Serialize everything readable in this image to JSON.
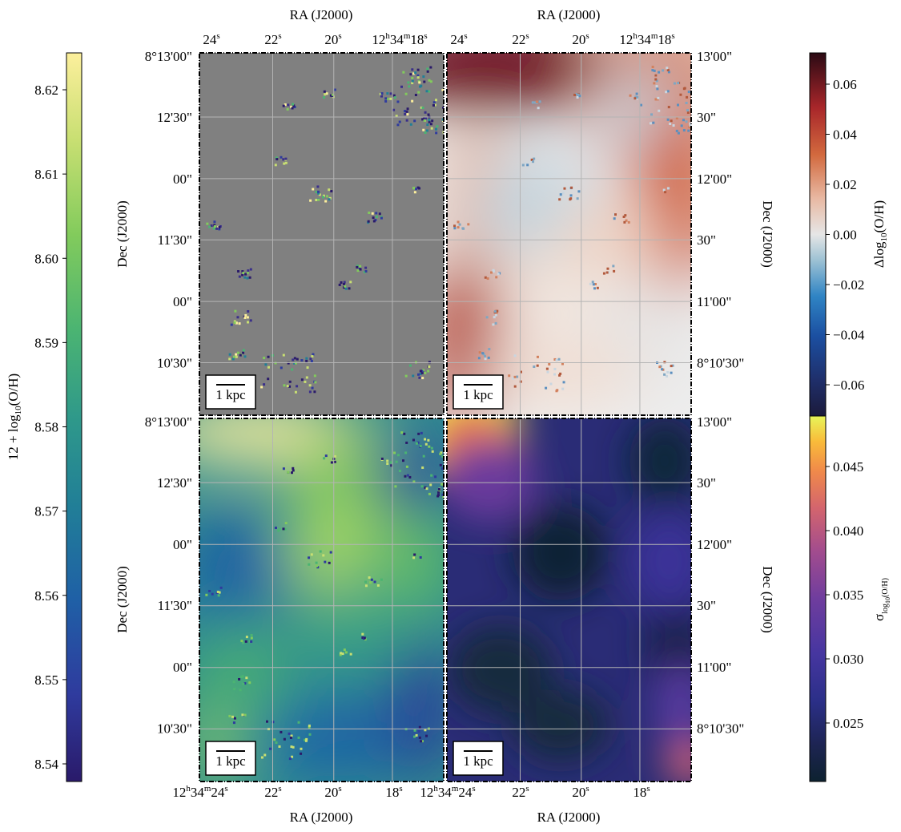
{
  "colors": {
    "gray_panel": "#808080",
    "grid": "#b4b4b4",
    "frame": "#000000"
  },
  "text": {
    "ra_label": "RA (J2000)",
    "dec_label": "Dec (J2000)",
    "scalebar": "1 kpc",
    "ra_top_ticks": [
      "24",
      "22",
      "20",
      "12",
      "18"
    ],
    "ra_bottom_ticks_left": [
      "12",
      "22",
      "20",
      "18"
    ],
    "ra_bottom_ticks_right": [
      "12",
      "22",
      "20",
      "18"
    ],
    "dec_left_ticks": [
      "8°13'00\"",
      "12'30\"",
      "00\"",
      "11'30\"",
      "00\"",
      "10'30\""
    ],
    "dec_right_ticks": [
      "13'00\"",
      "30\"",
      "12'00\"",
      "30\"",
      "11'00\"",
      "8°10'30\""
    ]
  },
  "chart_data": [
    {
      "type": "heatmap",
      "panel": "top-left",
      "description_colormap": "12 + log10(O/H)",
      "xlabel": "RA (J2000)",
      "ylabel": "Dec (J2000)",
      "background": "masked (gray)",
      "grid": true
    },
    {
      "type": "heatmap",
      "panel": "top-right",
      "xlabel": "RA (J2000)",
      "ylabel": "Dec (J2000)",
      "colorbar": {
        "label": "Δlog10(O/H)",
        "ticks": [
          "0.06",
          "0.04",
          "0.02",
          "0.00",
          "−0.02",
          "−0.04",
          "−0.06"
        ],
        "range": [
          -0.073,
          0.073
        ],
        "stops": [
          "#1b1a3b",
          "#1b4fa1",
          "#2f84c4",
          "#9ec2d4",
          "#e6e6e6",
          "#e8b8a2",
          "#d2693e",
          "#a8262a",
          "#5e0b1a",
          "#2b0a14"
        ]
      },
      "grid": true
    },
    {
      "type": "heatmap",
      "panel": "bottom-left",
      "xlabel": "RA (J2000)",
      "ylabel": "Dec (J2000)",
      "colorbar": {
        "label": "12 + log10(O/H)",
        "ticks": [
          "8.62",
          "8.61",
          "8.60",
          "8.59",
          "8.58",
          "8.57",
          "8.56",
          "8.55",
          "8.54"
        ],
        "range": [
          8.538,
          8.625
        ],
        "stops": [
          "#2a1a6a",
          "#2f3b9e",
          "#1f60a6",
          "#217f97",
          "#2f998a",
          "#4bb472",
          "#82cb5c",
          "#c8df72",
          "#fcef9c"
        ]
      },
      "grid": true
    },
    {
      "type": "heatmap",
      "panel": "bottom-right",
      "xlabel": "RA (J2000)",
      "ylabel": "Dec (J2000)",
      "colorbar": {
        "label": "σlog10(O/H)",
        "ticks": [
          "0.045",
          "0.040",
          "0.035",
          "0.030",
          "0.025"
        ],
        "range": [
          0.0205,
          0.0485
        ],
        "stops": [
          "#0d2230",
          "#1d2452",
          "#2b2f88",
          "#4636a0",
          "#6f3d9e",
          "#a24c8e",
          "#d4656d",
          "#f08a4a",
          "#f9bb3a",
          "#e7f55a"
        ]
      },
      "grid": true
    }
  ]
}
